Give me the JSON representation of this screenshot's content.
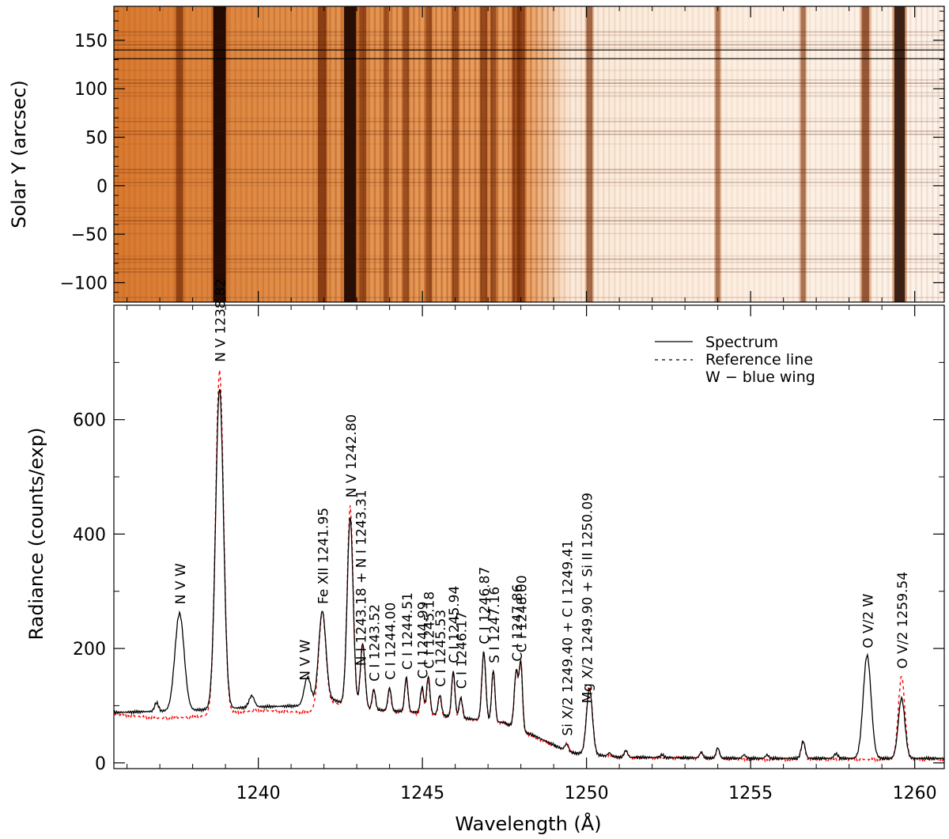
{
  "chart_data": [
    {
      "type": "heatmap",
      "title": "",
      "xlabel": "",
      "ylabel": "Solar Y (arcsec)",
      "xlim": [
        1235.6,
        1260.9
      ],
      "ylim": [
        -120,
        185
      ],
      "y_ticks": [
        -100,
        -50,
        0,
        50,
        100,
        150
      ],
      "y_tick_labels": [
        "−100",
        "−50",
        "0",
        "50",
        "100",
        "150"
      ],
      "colormap": [
        "#ffffff",
        "#f0b27a",
        "#d2691e",
        "#5a1a00",
        "#1a0500"
      ],
      "selected_rows": [
        131,
        140
      ],
      "note_brightness_change_x": 1249.0,
      "bright_columns": [
        {
          "x": 1238.82,
          "i": 1.0
        },
        {
          "x": 1242.8,
          "i": 0.95
        },
        {
          "x": 1241.95,
          "i": 0.6
        },
        {
          "x": 1237.6,
          "i": 0.45
        },
        {
          "x": 1243.18,
          "i": 0.45
        },
        {
          "x": 1247.86,
          "i": 0.55
        },
        {
          "x": 1248.0,
          "i": 0.55
        },
        {
          "x": 1246.0,
          "i": 0.4
        },
        {
          "x": 1246.87,
          "i": 0.45
        },
        {
          "x": 1247.16,
          "i": 0.35
        },
        {
          "x": 1245.2,
          "i": 0.35
        },
        {
          "x": 1244.5,
          "i": 0.35
        },
        {
          "x": 1243.9,
          "i": 0.3
        },
        {
          "x": 1250.09,
          "i": 0.35
        },
        {
          "x": 1258.5,
          "i": 0.5
        },
        {
          "x": 1259.54,
          "i": 0.8
        },
        {
          "x": 1256.6,
          "i": 0.25
        },
        {
          "x": 1254.0,
          "i": 0.2
        }
      ]
    },
    {
      "type": "line",
      "title": "",
      "xlabel": "Wavelength (Å)",
      "ylabel": "Radiance (counts/exp)",
      "xlim": [
        1235.6,
        1260.9
      ],
      "ylim": [
        -10,
        800
      ],
      "x_ticks": [
        1240,
        1245,
        1250,
        1255,
        1260
      ],
      "y_ticks": [
        0,
        200,
        400,
        600
      ],
      "y_minor_ticks": [
        100,
        300,
        500,
        700
      ],
      "legend_position": "top-right",
      "series": [
        {
          "name": "Spectrum",
          "style": "solid",
          "color": "#000000",
          "continuum": [
            [
              1235.6,
              88
            ],
            [
              1238,
              92
            ],
            [
              1240,
              98
            ],
            [
              1241.5,
              100
            ],
            [
              1242.3,
              110
            ],
            [
              1243,
              95
            ],
            [
              1245,
              88
            ],
            [
              1246,
              80
            ],
            [
              1247.5,
              70
            ],
            [
              1248.5,
              45
            ],
            [
              1249.5,
              18
            ],
            [
              1251,
              10
            ],
            [
              1255,
              8
            ],
            [
              1260.9,
              8
            ]
          ],
          "peaks": [
            [
              1236.9,
              15,
              0.06
            ],
            [
              1237.6,
              170,
              0.14
            ],
            [
              1238.82,
              560,
              0.12
            ],
            [
              1239.8,
              20,
              0.08
            ],
            [
              1241.5,
              50,
              0.1
            ],
            [
              1241.95,
              160,
              0.11
            ],
            [
              1242.8,
              330,
              0.09
            ],
            [
              1243.18,
              115,
              0.07
            ],
            [
              1243.52,
              35,
              0.05
            ],
            [
              1244.0,
              40,
              0.05
            ],
            [
              1244.51,
              60,
              0.05
            ],
            [
              1244.99,
              45,
              0.05
            ],
            [
              1245.18,
              65,
              0.05
            ],
            [
              1245.53,
              35,
              0.05
            ],
            [
              1245.94,
              80,
              0.05
            ],
            [
              1246.17,
              35,
              0.05
            ],
            [
              1246.87,
              120,
              0.06
            ],
            [
              1247.16,
              90,
              0.05
            ],
            [
              1247.86,
              100,
              0.06
            ],
            [
              1248.0,
              115,
              0.05
            ],
            [
              1249.4,
              12,
              0.06
            ],
            [
              1250.09,
              115,
              0.09
            ],
            [
              1250.7,
              6,
              0.05
            ],
            [
              1251.2,
              12,
              0.05
            ],
            [
              1252.3,
              5,
              0.05
            ],
            [
              1253.5,
              10,
              0.05
            ],
            [
              1254.0,
              18,
              0.05
            ],
            [
              1254.8,
              6,
              0.05
            ],
            [
              1255.5,
              6,
              0.05
            ],
            [
              1256.6,
              30,
              0.06
            ],
            [
              1257.6,
              8,
              0.06
            ],
            [
              1258.55,
              180,
              0.12
            ],
            [
              1259.6,
              105,
              0.1
            ]
          ]
        },
        {
          "name": "Reference line",
          "style": "dashed",
          "color": "#ff0000",
          "continuum": [
            [
              1235.6,
              85
            ],
            [
              1237,
              78
            ],
            [
              1238,
              80
            ],
            [
              1240,
              92
            ],
            [
              1241.5,
              88
            ],
            [
              1242.3,
              105
            ],
            [
              1243,
              95
            ],
            [
              1245,
              85
            ],
            [
              1246,
              78
            ],
            [
              1247.5,
              70
            ],
            [
              1248.5,
              42
            ],
            [
              1249.5,
              18
            ],
            [
              1251,
              10
            ],
            [
              1255,
              6
            ],
            [
              1260.9,
              6
            ]
          ],
          "peaks": [
            [
              1238.82,
              600,
              0.12
            ],
            [
              1241.95,
              165,
              0.11
            ],
            [
              1242.8,
              350,
              0.09
            ],
            [
              1243.18,
              110,
              0.07
            ],
            [
              1243.52,
              35,
              0.05
            ],
            [
              1244.0,
              38,
              0.05
            ],
            [
              1244.51,
              58,
              0.05
            ],
            [
              1244.99,
              45,
              0.05
            ],
            [
              1245.18,
              62,
              0.05
            ],
            [
              1245.53,
              35,
              0.05
            ],
            [
              1245.94,
              78,
              0.05
            ],
            [
              1246.17,
              35,
              0.05
            ],
            [
              1246.87,
              118,
              0.06
            ],
            [
              1247.16,
              88,
              0.05
            ],
            [
              1247.86,
              98,
              0.06
            ],
            [
              1248.0,
              112,
              0.05
            ],
            [
              1249.4,
              12,
              0.06
            ],
            [
              1250.09,
              120,
              0.09
            ],
            [
              1251.2,
              12,
              0.05
            ],
            [
              1253.5,
              10,
              0.05
            ],
            [
              1254.0,
              18,
              0.05
            ],
            [
              1256.6,
              30,
              0.06
            ],
            [
              1259.6,
              145,
              0.1
            ]
          ]
        },
        {
          "name": "W − blue wing",
          "style": "none",
          "color": "#000000"
        }
      ],
      "annotations": [
        {
          "text": "N V W",
          "x": 1237.6
        },
        {
          "text": "N V 1238.82",
          "x": 1238.82
        },
        {
          "text": "N V W",
          "x": 1241.4
        },
        {
          "text": "Fe XII 1241.95",
          "x": 1241.95
        },
        {
          "text": "N V 1242.80",
          "x": 1242.8
        },
        {
          "text": "N I 1243.18 + N I 1243.31",
          "x": 1243.1
        },
        {
          "text": "C I 1243.52",
          "x": 1243.52
        },
        {
          "text": "C I 1244.00",
          "x": 1244.0
        },
        {
          "text": "C I 1244.51",
          "x": 1244.51
        },
        {
          "text": "C I 1244.99",
          "x": 1244.99
        },
        {
          "text": "C I 1245.18",
          "x": 1245.18
        },
        {
          "text": "C I 1245.53",
          "x": 1245.53
        },
        {
          "text": "C I 1245.94",
          "x": 1245.94
        },
        {
          "text": "C I 1246.17",
          "x": 1246.17
        },
        {
          "text": "C I 1246.87",
          "x": 1246.87
        },
        {
          "text": "S I 1247.16",
          "x": 1247.16
        },
        {
          "text": "C I 1247.86",
          "x": 1247.86
        },
        {
          "text": "C I 1248.00",
          "x": 1248.0
        },
        {
          "text": "Si X/2 1249.40 + C I 1249.41",
          "x": 1249.4
        },
        {
          "text": "Mg X/2 1249.90 + Si II 1250.09",
          "x": 1250.0
        },
        {
          "text": "O V/2 W",
          "x": 1258.55
        },
        {
          "text": "O V/2 1259.54",
          "x": 1259.6
        }
      ]
    }
  ]
}
